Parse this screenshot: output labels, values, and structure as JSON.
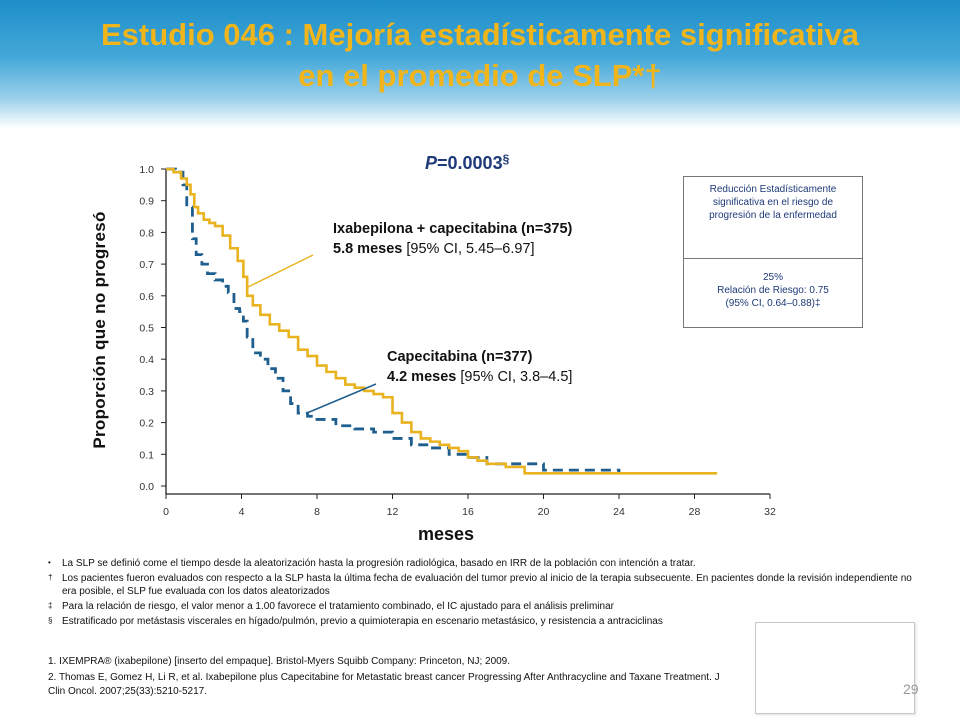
{
  "slide": {
    "title_line1": "Estudio 046 :  Mejoría estadísticamente significativa",
    "title_line2": "en el promedio de SLP*†",
    "page_number": "29"
  },
  "colors": {
    "title": "#f1b51c",
    "ixabepilone_curve": "#e9b320",
    "capecitabine_curve": "#1f5f8f",
    "pvalue": "#1f3a78",
    "header": "#1d8ec9"
  },
  "annotations": {
    "p_label": "P",
    "p_value": "=0.0003",
    "p_marker": "§",
    "ixa_name": "Ixabepilona + capecitabina (n=375)",
    "ixa_bold": "5.8 meses",
    "ixa_ci": " [95% CI, 5.45–6.97]",
    "cap_name": "Capecitabina (n=377)",
    "cap_bold": "4.2 meses",
    "cap_ci": " [95% CI, 3.8–4.5]"
  },
  "box": {
    "top_text": "Reducción Estadísticamente significativa en el riesgo de progresión de la enfermedad",
    "line1": "25%",
    "line2": "Relación de Riesgo: 0.75",
    "line3": "(95% CI, 0.64–0.88)‡"
  },
  "footnotes": [
    {
      "marker": "•",
      "text": "La SLP se definió come el tiempo desde la aleatorización hasta la progresión radiológica, basado en IRR de la población con intención a tratar."
    },
    {
      "marker": "†",
      "text": "Los pacientes fueron evaluados con respecto a la SLP hasta la última fecha de evaluación del tumor previo al inicio de la terapia subsecuente. En pacientes donde la revisión independiente no era posible, el SLP fue evaluada con los datos aleatorizados"
    },
    {
      "marker": "‡",
      "text": "Para la relación de riesgo, el valor menor a 1.00 favorece el tratamiento combinado, el IC ajustado para el análisis preliminar"
    },
    {
      "marker": "§",
      "text": "Estratificado por metástasis viscerales en hígado/pulmón,  previo a quimioterapia en escenario metastásico, y resistencia a antraciclinas"
    }
  ],
  "references": [
    "1.  IXEMPRA® (ixabepilone) [inserto del empaque]. Bristol-Myers Squibb Company: Princeton, NJ; 2009.",
    "2. Thomas E, Gomez H, Li R, et al. Ixabepilone plus Capecitabine for Metastatic breast cancer Progressing After Anthracycline and Taxane Treatment. J Clin Oncol. 2007;25(33):5210-5217."
  ],
  "chart_data": {
    "type": "line",
    "title": "",
    "xlabel": "meses",
    "ylabel": "Proporción que no progresó",
    "xlim": [
      0,
      32
    ],
    "ylim": [
      0,
      1
    ],
    "x_ticks": [
      "0",
      "4",
      "8",
      "12",
      "16",
      "20",
      "24",
      "28",
      "32"
    ],
    "y_ticks": [
      "0.0",
      "0.1",
      "0.2",
      "0.3",
      "0.4",
      "0.5",
      "0.6",
      "0.7",
      "0.8",
      "0.9",
      "1.0"
    ],
    "grid": false,
    "series": [
      {
        "name": "Ixabepilona + capecitabina (n=375)",
        "style": "solid",
        "x": [
          0,
          0.4,
          0.8,
          1.1,
          1.3,
          1.5,
          1.7,
          2.0,
          2.3,
          2.6,
          3.0,
          3.4,
          3.8,
          4.1,
          4.3,
          4.6,
          5.0,
          5.5,
          6.0,
          6.5,
          7.0,
          7.5,
          8.0,
          8.5,
          9.0,
          9.5,
          10.0,
          10.5,
          11.0,
          11.5,
          12.0,
          12.5,
          13.0,
          13.5,
          14.0,
          14.5,
          15.0,
          15.5,
          16.0,
          16.5,
          17.0,
          18.0,
          19.0,
          20.0,
          24.0,
          29.2
        ],
        "y": [
          1.0,
          0.99,
          0.97,
          0.95,
          0.92,
          0.88,
          0.86,
          0.84,
          0.83,
          0.82,
          0.79,
          0.75,
          0.71,
          0.66,
          0.6,
          0.57,
          0.54,
          0.51,
          0.49,
          0.47,
          0.43,
          0.41,
          0.38,
          0.36,
          0.34,
          0.32,
          0.31,
          0.3,
          0.29,
          0.28,
          0.23,
          0.2,
          0.17,
          0.15,
          0.14,
          0.13,
          0.12,
          0.11,
          0.09,
          0.08,
          0.07,
          0.06,
          0.04,
          0.04,
          0.04,
          0.04
        ]
      },
      {
        "name": "Capecitabina (n=377)",
        "style": "dashed",
        "x": [
          0,
          0.5,
          0.9,
          1.1,
          1.4,
          1.6,
          1.9,
          2.2,
          2.6,
          3.0,
          3.3,
          3.6,
          3.9,
          4.1,
          4.3,
          4.6,
          5.0,
          5.4,
          5.8,
          6.2,
          6.6,
          7.0,
          7.5,
          8.0,
          9.0,
          10.0,
          11.0,
          12.0,
          13.0,
          14.0,
          15.0,
          16.0,
          17.0,
          18.0,
          20.0,
          22.0,
          24.0
        ],
        "y": [
          1.0,
          0.99,
          0.95,
          0.88,
          0.78,
          0.73,
          0.7,
          0.67,
          0.65,
          0.63,
          0.61,
          0.56,
          0.55,
          0.52,
          0.47,
          0.42,
          0.4,
          0.37,
          0.34,
          0.3,
          0.26,
          0.23,
          0.22,
          0.21,
          0.19,
          0.18,
          0.17,
          0.15,
          0.13,
          0.12,
          0.1,
          0.09,
          0.07,
          0.07,
          0.05,
          0.05,
          0.04
        ]
      }
    ]
  }
}
